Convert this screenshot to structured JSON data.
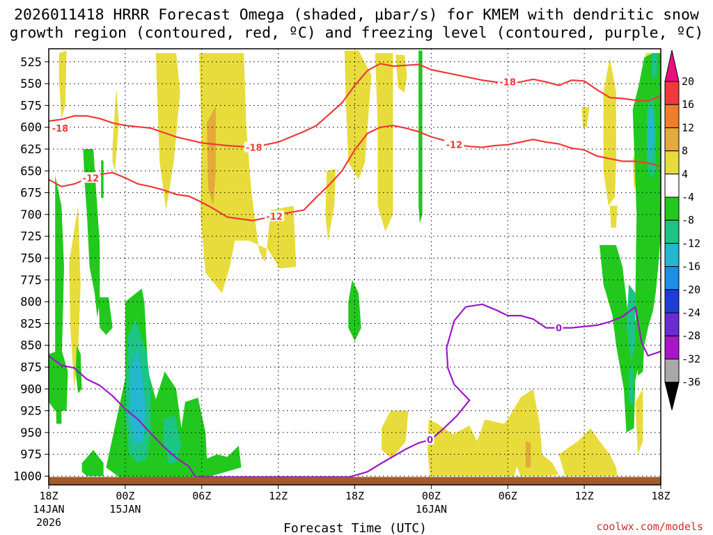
{
  "chart_data": {
    "type": "heatmap",
    "title_line1": "2026011418 HRRR Forecast Omega (shaded, μbar/s) for KMEM with dendritic snow",
    "title_line2": "growth region (contoured, red, ºC) and freezing level (contoured, purple, ºC)",
    "xlabel": "Forecast Time (UTC)",
    "ylabel": "",
    "credit": "coolwx.com/models",
    "x_range_hours": [
      0,
      48
    ],
    "y_range_hpa": [
      1010,
      510
    ],
    "y_ticks": [
      "525",
      "550",
      "575",
      "600",
      "625",
      "650",
      "675",
      "700",
      "725",
      "750",
      "775",
      "800",
      "825",
      "850",
      "875",
      "900",
      "925",
      "950",
      "975",
      "1000"
    ],
    "x_ticks": [
      {
        "hour": 0,
        "label": "18Z",
        "sub1": "14JAN",
        "sub2": "2026"
      },
      {
        "hour": 6,
        "label": "00Z",
        "sub1": "15JAN",
        "sub2": ""
      },
      {
        "hour": 12,
        "label": "06Z",
        "sub1": "",
        "sub2": ""
      },
      {
        "hour": 18,
        "label": "12Z",
        "sub1": "",
        "sub2": ""
      },
      {
        "hour": 24,
        "label": "18Z",
        "sub1": "",
        "sub2": ""
      },
      {
        "hour": 30,
        "label": "00Z",
        "sub1": "16JAN",
        "sub2": ""
      },
      {
        "hour": 36,
        "label": "06Z",
        "sub1": "",
        "sub2": ""
      },
      {
        "hour": 42,
        "label": "12Z",
        "sub1": "",
        "sub2": ""
      },
      {
        "hour": 48,
        "label": "18Z",
        "sub1": "",
        "sub2": ""
      }
    ],
    "colorbar": {
      "labels": [
        "20",
        "16",
        "12",
        "8",
        "4",
        "-4",
        "-8",
        "-12",
        "-16",
        "-20",
        "-24",
        "-28",
        "-32",
        "-36"
      ],
      "colors": {
        "top_arrow": "#e8107f",
        "c16_20": "#ee3a3a",
        "c12_16": "#ee7f28",
        "c8_12": "#e4aa3a",
        "c4_8": "#e8dc3c",
        "neutral": "#ffffff",
        "cm8_m4": "#22c81e",
        "cm12_m8": "#1cc485",
        "cm16_m12": "#25b7d0",
        "cm20_m16": "#1c8ee6",
        "cm24_m20": "#1d3ed6",
        "cm28_m24": "#6a2bd0",
        "cm32_m28": "#a816c8",
        "cm36_m32": "#a8a8a8",
        "bottom_arrow": "#000000"
      }
    },
    "contour_colors": {
      "dgz": "#ee3a3a",
      "freezing": "#9a18c8",
      "ground": "#a35a2c"
    },
    "contour_labels": {
      "m18": "-18",
      "m12": "-12",
      "zero": "0"
    },
    "series": [
      {
        "name": "-18C isotherm",
        "points": [
          [
            0,
            593
          ],
          [
            1,
            591
          ],
          [
            2,
            587
          ],
          [
            3,
            587
          ],
          [
            4,
            590
          ],
          [
            5,
            595
          ],
          [
            6,
            598
          ],
          [
            8,
            601
          ],
          [
            10,
            611
          ],
          [
            12,
            618
          ],
          [
            14,
            621
          ],
          [
            16,
            623
          ],
          [
            18,
            617
          ],
          [
            20,
            605
          ],
          [
            21,
            598
          ],
          [
            22,
            585
          ],
          [
            23,
            572
          ],
          [
            24,
            552
          ],
          [
            25,
            535
          ],
          [
            26,
            527
          ],
          [
            27,
            530
          ],
          [
            28,
            529
          ],
          [
            29,
            528
          ],
          [
            30,
            534
          ],
          [
            31,
            537
          ],
          [
            32,
            540
          ],
          [
            33,
            543
          ],
          [
            34,
            546
          ],
          [
            35,
            548
          ],
          [
            36,
            550
          ],
          [
            37,
            548
          ],
          [
            38,
            545
          ],
          [
            39,
            548
          ],
          [
            40,
            552
          ],
          [
            41,
            546
          ],
          [
            42,
            547
          ],
          [
            43,
            557
          ],
          [
            44,
            566
          ],
          [
            45,
            567
          ],
          [
            46,
            569
          ],
          [
            47,
            570
          ],
          [
            48,
            564
          ]
        ]
      },
      {
        "name": "-12C isotherm",
        "points": [
          [
            0,
            660
          ],
          [
            1,
            668
          ],
          [
            2,
            665
          ],
          [
            3,
            659
          ],
          [
            4,
            654
          ],
          [
            5,
            652
          ],
          [
            6,
            658
          ],
          [
            7,
            665
          ],
          [
            8,
            668
          ],
          [
            9,
            672
          ],
          [
            10,
            677
          ],
          [
            11,
            679
          ],
          [
            12,
            686
          ],
          [
            13,
            694
          ],
          [
            14,
            703
          ],
          [
            15,
            705
          ],
          [
            16,
            707
          ],
          [
            17,
            704
          ],
          [
            18,
            700
          ],
          [
            20,
            695
          ],
          [
            21,
            680
          ],
          [
            22,
            666
          ],
          [
            23,
            650
          ],
          [
            24,
            626
          ],
          [
            25,
            607
          ],
          [
            26,
            600
          ],
          [
            27,
            598
          ],
          [
            28,
            601
          ],
          [
            29,
            605
          ],
          [
            30,
            611
          ],
          [
            31,
            615
          ],
          [
            32,
            620
          ],
          [
            33,
            622
          ],
          [
            34,
            623
          ],
          [
            35,
            621
          ],
          [
            36,
            620
          ],
          [
            37,
            617
          ],
          [
            38,
            614
          ],
          [
            39,
            617
          ],
          [
            40,
            619
          ],
          [
            41,
            624
          ],
          [
            42,
            626
          ],
          [
            43,
            633
          ],
          [
            44,
            636
          ],
          [
            45,
            639
          ],
          [
            46,
            639
          ],
          [
            47,
            641
          ],
          [
            48,
            645
          ]
        ]
      },
      {
        "name": "0C freezing level",
        "points": [
          [
            0,
            862
          ],
          [
            1,
            873
          ],
          [
            2,
            876
          ],
          [
            3,
            889
          ],
          [
            4,
            896
          ],
          [
            5,
            908
          ],
          [
            6,
            923
          ],
          [
            7,
            935
          ],
          [
            8,
            951
          ],
          [
            9,
            966
          ],
          [
            10,
            979
          ],
          [
            11,
            989
          ],
          [
            11.5,
            1001
          ],
          [
            23.6,
            1001
          ],
          [
            25,
            995
          ],
          [
            26,
            986
          ],
          [
            28,
            969
          ],
          [
            29,
            962
          ],
          [
            30,
            958
          ],
          [
            31,
            945
          ],
          [
            32,
            931
          ],
          [
            33,
            913
          ],
          [
            31.8,
            895
          ],
          [
            31.3,
            876
          ],
          [
            31.2,
            853
          ],
          [
            31.8,
            822
          ],
          [
            32.7,
            806
          ],
          [
            34,
            803
          ],
          [
            35,
            809
          ],
          [
            36,
            816
          ],
          [
            37,
            816
          ],
          [
            38,
            820
          ],
          [
            39,
            830
          ],
          [
            41,
            830
          ],
          [
            43,
            827
          ],
          [
            44,
            823
          ],
          [
            45,
            817
          ],
          [
            46,
            806
          ],
          [
            46.5,
            847
          ],
          [
            47,
            862
          ],
          [
            48,
            857
          ]
        ]
      }
    ],
    "regions": [
      {
        "name": "yellow omega positive columns",
        "value_range": [
          4,
          8
        ]
      },
      {
        "name": "orange omega maxima",
        "value_range": [
          8,
          12
        ]
      },
      {
        "name": "green omega negative",
        "value_range": [
          -8,
          -4
        ]
      },
      {
        "name": "teal omega",
        "value_range": [
          -12,
          -8
        ]
      },
      {
        "name": "cyan omega",
        "value_range": [
          -16,
          -12
        ]
      }
    ]
  }
}
